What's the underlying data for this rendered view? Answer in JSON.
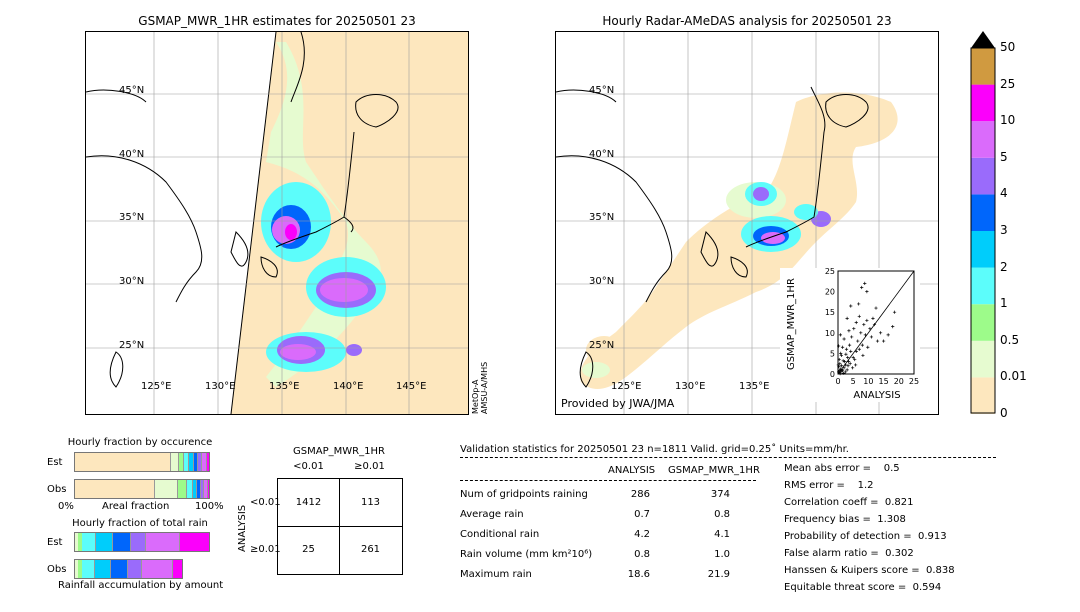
{
  "left_map": {
    "title": "GSMAP_MWR_1HR estimates for 20250501 23",
    "lat_labels": [
      "45°N",
      "40°N",
      "35°N",
      "30°N",
      "25°N"
    ],
    "lon_labels": [
      "125°E",
      "130°E",
      "135°E",
      "140°E",
      "145°E"
    ],
    "sensor_note": "MetOp-A\nAMSU-A/MHS"
  },
  "right_map": {
    "title": "Hourly Radar-AMeDAS analysis for 20250501 23",
    "lat_labels": [
      "45°N",
      "40°N",
      "35°N",
      "30°N",
      "25°N"
    ],
    "lon_labels": [
      "125°E",
      "130°E",
      "135°E"
    ],
    "provider": "Provided by JWA/JMA"
  },
  "colorbar": {
    "ticks": [
      "0",
      "0.01",
      "0.5",
      "1",
      "2",
      "3",
      "4",
      "5",
      "10",
      "25",
      "50"
    ],
    "colors": [
      "#fde7be",
      "#e6fbd0",
      "#9dfb8a",
      "#5cfdfb",
      "#00cdfb",
      "#0066fb",
      "#9a6bfb",
      "#da6bfb",
      "#fb00fb",
      "#d09a40"
    ]
  },
  "occurrence": {
    "title": "Hourly fraction by occurence",
    "rows": [
      "Est",
      "Obs"
    ],
    "axis_left": "0%",
    "axis_mid": "Areal fraction",
    "axis_right": "100%"
  },
  "total_rain": {
    "title": "Hourly fraction of total rain",
    "rows": [
      "Est",
      "Obs"
    ],
    "footer": "Rainfall accumulation by amount"
  },
  "contingency": {
    "title": "GSMAP_MWR_1HR",
    "col_labels": [
      "<0.01",
      "≥0.01"
    ],
    "row_axis": "ANALYSIS",
    "row_labels": [
      "<0.01",
      "≥0.01"
    ],
    "cells": [
      [
        "1412",
        "113"
      ],
      [
        "25",
        "261"
      ]
    ]
  },
  "validation": {
    "header": "Validation statistics for 20250501 23  n=1811 Valid. grid=0.25˚ Units=mm/hr.",
    "col_analysis": "ANALYSIS",
    "col_gsmap": "GSMAP_MWR_1HR",
    "rows": [
      {
        "label": "Num of gridpoints raining",
        "analysis": "286",
        "gsmap": "374"
      },
      {
        "label": "Average rain",
        "analysis": "0.7",
        "gsmap": "0.8"
      },
      {
        "label": "Conditional rain",
        "analysis": "4.2",
        "gsmap": "4.1"
      },
      {
        "label": "Rain volume (mm km²10⁶)",
        "analysis": "0.8",
        "gsmap": "1.0"
      },
      {
        "label": "Maximum rain",
        "analysis": "18.6",
        "gsmap": "21.9"
      }
    ],
    "scores": [
      "Mean abs error =    0.5",
      "RMS error =    1.2",
      "Correlation coeff =  0.821",
      "Frequency bias =  1.308",
      "Probability of detection =  0.913",
      "False alarm ratio =  0.302",
      "Hanssen & Kuipers score =  0.838",
      "Equitable threat score =  0.594"
    ]
  },
  "chart_data": {
    "type": "scatter",
    "xlabel": "ANALYSIS",
    "ylabel": "GSMAP_MWR_1HR",
    "xlim": [
      0,
      25
    ],
    "ylim": [
      0,
      25
    ],
    "ticks": [
      "0",
      "5",
      "10",
      "15",
      "20",
      "25"
    ],
    "points": [
      [
        0.2,
        0.5
      ],
      [
        0.5,
        0.3
      ],
      [
        0.8,
        1.2
      ],
      [
        1.0,
        0.6
      ],
      [
        1.2,
        2.0
      ],
      [
        1.5,
        0.8
      ],
      [
        0.3,
        1.8
      ],
      [
        2.0,
        1.5
      ],
      [
        2.2,
        3.0
      ],
      [
        1.8,
        0.2
      ],
      [
        0.6,
        2.5
      ],
      [
        2.5,
        2.2
      ],
      [
        3.0,
        1.0
      ],
      [
        3.2,
        4.0
      ],
      [
        0.4,
        3.5
      ],
      [
        1.1,
        4.5
      ],
      [
        3.5,
        3.0
      ],
      [
        4.0,
        2.5
      ],
      [
        4.2,
        5.5
      ],
      [
        0.9,
        5.0
      ],
      [
        2.8,
        6.0
      ],
      [
        5.0,
        4.0
      ],
      [
        5.5,
        3.5
      ],
      [
        1.5,
        6.5
      ],
      [
        6.0,
        5.5
      ],
      [
        3.8,
        7.0
      ],
      [
        6.5,
        8.0
      ],
      [
        2.0,
        8.5
      ],
      [
        7.0,
        6.0
      ],
      [
        4.5,
        9.0
      ],
      [
        7.5,
        10.0
      ],
      [
        8.0,
        7.0
      ],
      [
        5.2,
        11.0
      ],
      [
        8.5,
        12.0
      ],
      [
        9.0,
        9.5
      ],
      [
        6.0,
        12.5
      ],
      [
        9.5,
        13.0
      ],
      [
        10.5,
        11.0
      ],
      [
        7.0,
        14.0
      ],
      [
        11.0,
        9.0
      ],
      [
        12.0,
        12.0
      ],
      [
        13.0,
        8.0
      ],
      [
        3.0,
        13.5
      ],
      [
        14.0,
        10.0
      ],
      [
        0.5,
        0.9
      ],
      [
        1.3,
        1.1
      ],
      [
        0.7,
        0.1
      ],
      [
        2.4,
        0.5
      ],
      [
        0.1,
        2.2
      ],
      [
        3.3,
        2.0
      ],
      [
        1.7,
        3.2
      ],
      [
        4.8,
        1.5
      ],
      [
        2.6,
        4.8
      ],
      [
        0.2,
        6.8
      ],
      [
        5.8,
        2.2
      ],
      [
        8.2,
        4.5
      ],
      [
        9.8,
        6.5
      ],
      [
        11.5,
        13.5
      ],
      [
        0.8,
        9.5
      ],
      [
        3.6,
        10.5
      ],
      [
        7.8,
        21.0
      ],
      [
        8.8,
        22.0
      ],
      [
        9.5,
        20.0
      ],
      [
        18.0,
        11.5
      ],
      [
        18.6,
        15.0
      ],
      [
        16.5,
        9.5
      ],
      [
        4.2,
        16.5
      ],
      [
        6.8,
        17.0
      ],
      [
        15.0,
        8.0
      ],
      [
        12.5,
        16.0
      ]
    ]
  }
}
